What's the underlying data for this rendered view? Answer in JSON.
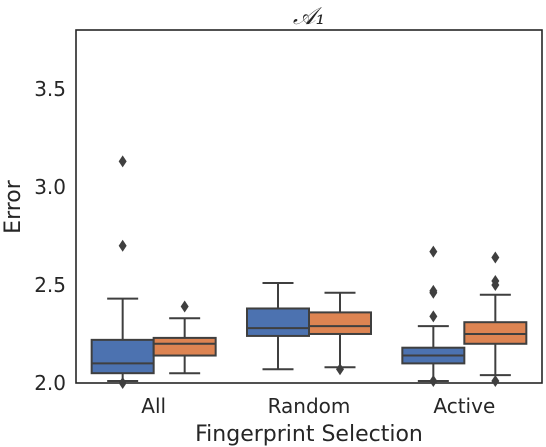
{
  "chart_data": {
    "type": "box",
    "title": "𝒜₁",
    "xlabel": "Fingerprint Selection",
    "ylabel": "Error",
    "categories": [
      "All",
      "Random",
      "Active"
    ],
    "ylim": [
      2.0,
      3.8
    ],
    "yticks": [
      "2.0",
      "2.5",
      "3.0",
      "3.5"
    ],
    "grid": false,
    "legend": "none",
    "series": [
      {
        "color": "#4C72B0",
        "boxes": [
          {
            "whisker_low": 2.01,
            "q1": 2.05,
            "median": 2.1,
            "q3": 2.22,
            "whisker_high": 2.43,
            "outliers": [
              2.7,
              3.13,
              2.0
            ]
          },
          {
            "whisker_low": 2.07,
            "q1": 2.24,
            "median": 2.28,
            "q3": 2.38,
            "whisker_high": 2.51,
            "outliers": []
          },
          {
            "whisker_low": 2.01,
            "q1": 2.1,
            "median": 2.14,
            "q3": 2.18,
            "whisker_high": 2.29,
            "outliers": [
              2.34,
              2.46,
              2.47,
              2.67,
              2.01
            ]
          }
        ]
      },
      {
        "color": "#DD8452",
        "boxes": [
          {
            "whisker_low": 2.05,
            "q1": 2.14,
            "median": 2.2,
            "q3": 2.23,
            "whisker_high": 2.33,
            "outliers": [
              2.39
            ]
          },
          {
            "whisker_low": 2.08,
            "q1": 2.25,
            "median": 2.29,
            "q3": 2.36,
            "whisker_high": 2.46,
            "outliers": [
              2.07
            ]
          },
          {
            "whisker_low": 2.04,
            "q1": 2.2,
            "median": 2.25,
            "q3": 2.31,
            "whisker_high": 2.45,
            "outliers": [
              2.5,
              2.52,
              2.64,
              2.01
            ]
          }
        ]
      }
    ]
  }
}
